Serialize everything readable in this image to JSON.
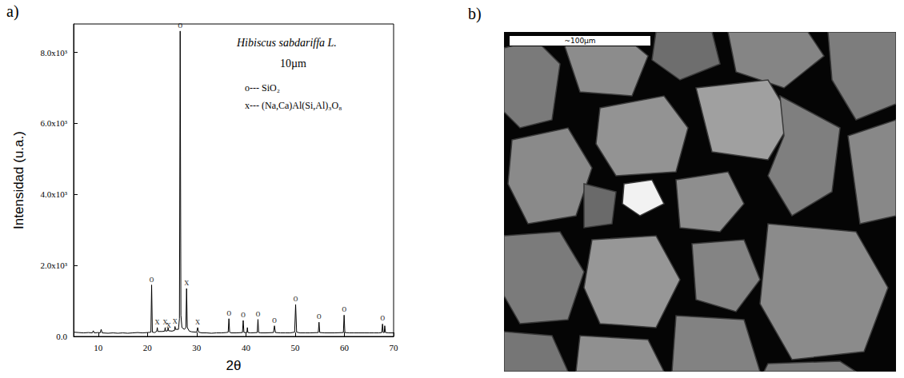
{
  "chart_data": {
    "type": "line",
    "panel_label": "a)",
    "title": "Hibiscus sabdariffa L.",
    "subtitle": "10µm",
    "legend_texts": [
      "o--- SiO₂",
      "x--- (Na,Ca)Al(Si,Al)₃O₈"
    ],
    "x_label": "2θ",
    "y_label": "Intensidad (u.a.)",
    "color": "#000000",
    "grid": false,
    "xlim": [
      5,
      70
    ],
    "xticks": [
      10,
      20,
      30,
      40,
      50,
      60,
      70
    ],
    "ylim": [
      0,
      8800
    ],
    "yticks": [
      {
        "value": 0,
        "label": "0.0"
      },
      {
        "value": 2000,
        "label": "2.0x10³"
      },
      {
        "value": 4000,
        "label": "4.0x10³"
      },
      {
        "value": 6000,
        "label": "6.0x10³"
      },
      {
        "value": 8000,
        "label": "8.0x10³"
      }
    ],
    "x": [
      5,
      6,
      7,
      8,
      8.8,
      9.0,
      9.2,
      10,
      10.4,
      10.6,
      10.8,
      12,
      13,
      14,
      15,
      16,
      17,
      18,
      19,
      20,
      20.7,
      20.85,
      21.0,
      21.5,
      21.9,
      22.0,
      22.1,
      23,
      23.5,
      23.6,
      23.7,
      24.1,
      24.2,
      24.3,
      25.0,
      25.5,
      25.6,
      25.7,
      26.3,
      26.5,
      26.65,
      26.8,
      27.0,
      27.5,
      27.8,
      27.95,
      28.1,
      28.5,
      29,
      30.0,
      30.2,
      30.4,
      31,
      32,
      33,
      34,
      35,
      36,
      36.4,
      36.55,
      36.7,
      37,
      38,
      39.3,
      39.45,
      39.6,
      40.2,
      40.3,
      40.4,
      41,
      42.3,
      42.45,
      42.6,
      43,
      44,
      45.6,
      45.8,
      46.0,
      47,
      48,
      49,
      49.9,
      50.1,
      50.3,
      51,
      52,
      53,
      54.7,
      54.85,
      55.0,
      56,
      57,
      58,
      59.8,
      59.95,
      60.1,
      61,
      62,
      63,
      64,
      65,
      66,
      67,
      67.6,
      67.75,
      67.9,
      68.1,
      68.2,
      68.35,
      69,
      70
    ],
    "values": [
      120,
      110,
      100,
      110,
      100,
      160,
      100,
      110,
      100,
      200,
      100,
      90,
      100,
      90,
      100,
      90,
      100,
      110,
      100,
      110,
      120,
      1450,
      120,
      110,
      150,
      250,
      140,
      140,
      150,
      250,
      150,
      160,
      250,
      160,
      150,
      170,
      280,
      200,
      200,
      500,
      8600,
      600,
      250,
      200,
      250,
      1350,
      250,
      150,
      130,
      120,
      250,
      120,
      100,
      100,
      90,
      100,
      100,
      110,
      120,
      500,
      120,
      100,
      100,
      110,
      450,
      110,
      110,
      250,
      110,
      100,
      110,
      480,
      110,
      100,
      100,
      110,
      300,
      110,
      100,
      100,
      100,
      120,
      900,
      120,
      100,
      100,
      100,
      110,
      400,
      110,
      100,
      100,
      100,
      110,
      600,
      110,
      100,
      100,
      100,
      100,
      100,
      100,
      100,
      110,
      350,
      110,
      110,
      300,
      110,
      100,
      100
    ],
    "annotations": [
      {
        "x": 20.85,
        "label": "o"
      },
      {
        "x": 26.65,
        "label": "o"
      },
      {
        "x": 36.55,
        "label": "o"
      },
      {
        "x": 39.45,
        "label": "o"
      },
      {
        "x": 42.45,
        "label": "o"
      },
      {
        "x": 45.8,
        "label": "o"
      },
      {
        "x": 50.1,
        "label": "o"
      },
      {
        "x": 54.85,
        "label": "o"
      },
      {
        "x": 59.95,
        "label": "o"
      },
      {
        "x": 67.75,
        "label": "o"
      },
      {
        "x": 22.0,
        "label": "x"
      },
      {
        "x": 23.6,
        "label": "x"
      },
      {
        "x": 24.3,
        "label": "x"
      },
      {
        "x": 25.6,
        "label": "x"
      },
      {
        "x": 27.95,
        "label": "x"
      },
      {
        "x": 30.2,
        "label": "x"
      }
    ]
  },
  "image": {
    "panel_label": "b)",
    "scale_bar": "~100µm"
  }
}
